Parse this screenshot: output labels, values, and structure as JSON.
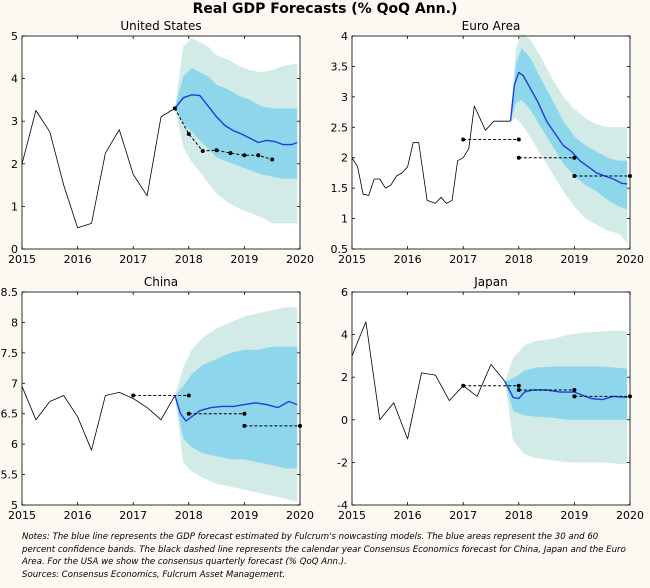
{
  "title": "Real GDP Forecasts (% QoQ Ann.)",
  "colors": {
    "background": "#fbf9f1",
    "band60": "#d2ebe6",
    "band30": "#8ed6ec",
    "forecast_line": "#1a3fe0",
    "history_line": "#000000",
    "consensus": "#000000"
  },
  "chart_data": [
    {
      "id": "us",
      "type": "line",
      "title": "United States",
      "xlim": [
        2015,
        2020
      ],
      "ylim": [
        0,
        5
      ],
      "xticks": [
        2015,
        2016,
        2017,
        2018,
        2019,
        2020
      ],
      "yticks": [
        0,
        1,
        2,
        3,
        4,
        5
      ],
      "grid": false,
      "history": {
        "x": [
          2015.0,
          2015.25,
          2015.5,
          2015.75,
          2016.0,
          2016.25,
          2016.5,
          2016.75,
          2017.0,
          2017.25,
          2017.5,
          2017.75
        ],
        "y": [
          2.0,
          3.25,
          2.75,
          1.5,
          0.5,
          0.6,
          2.25,
          2.8,
          1.75,
          1.25,
          3.1,
          3.3
        ]
      },
      "forecast": {
        "x": [
          2017.75,
          2017.9,
          2018.05,
          2018.2,
          2018.35,
          2018.5,
          2018.65,
          2018.8,
          2018.95,
          2019.1,
          2019.25,
          2019.4,
          2019.55,
          2019.7,
          2019.85,
          2019.95
        ],
        "y": [
          3.3,
          3.55,
          3.62,
          3.6,
          3.35,
          3.1,
          2.9,
          2.78,
          2.7,
          2.6,
          2.5,
          2.55,
          2.52,
          2.45,
          2.45,
          2.5
        ]
      },
      "band30": {
        "x": [
          2017.75,
          2017.9,
          2018.05,
          2018.2,
          2018.35,
          2018.5,
          2018.7,
          2018.9,
          2019.1,
          2019.3,
          2019.5,
          2019.7,
          2019.95
        ],
        "lower": [
          3.3,
          2.95,
          2.75,
          2.55,
          2.35,
          2.15,
          2.05,
          1.95,
          1.85,
          1.75,
          1.7,
          1.65,
          1.65
        ],
        "upper": [
          3.3,
          4.05,
          4.25,
          4.15,
          4.05,
          3.85,
          3.75,
          3.6,
          3.5,
          3.35,
          3.3,
          3.3,
          3.3
        ]
      },
      "band60": {
        "x": [
          2017.75,
          2017.9,
          2018.05,
          2018.2,
          2018.35,
          2018.5,
          2018.7,
          2018.9,
          2019.1,
          2019.3,
          2019.5,
          2019.7,
          2019.95
        ],
        "lower": [
          3.3,
          2.4,
          2.05,
          1.8,
          1.55,
          1.3,
          1.1,
          0.95,
          0.85,
          0.75,
          0.6,
          0.6,
          0.6
        ],
        "upper": [
          3.3,
          4.75,
          4.95,
          4.85,
          4.75,
          4.55,
          4.45,
          4.3,
          4.2,
          4.15,
          4.2,
          4.3,
          4.35
        ]
      },
      "consensus": [
        {
          "x": [
            2017.75,
            2018.0,
            2018.25,
            2018.5,
            2018.75,
            2019.0,
            2019.25,
            2019.5
          ],
          "y": [
            3.3,
            2.7,
            2.3,
            2.32,
            2.25,
            2.2,
            2.2,
            2.1
          ],
          "dots": [
            0,
            1,
            2,
            3,
            4,
            5,
            6,
            7
          ]
        }
      ]
    },
    {
      "id": "ea",
      "type": "line",
      "title": "Euro Area",
      "xlim": [
        2015,
        2020
      ],
      "ylim": [
        0.5,
        4
      ],
      "xticks": [
        2015,
        2016,
        2017,
        2018,
        2019,
        2020
      ],
      "yticks": [
        0.5,
        1,
        1.5,
        2,
        2.5,
        3,
        3.5,
        4
      ],
      "grid": false,
      "history": {
        "x": [
          2015.0,
          2015.1,
          2015.2,
          2015.3,
          2015.4,
          2015.5,
          2015.6,
          2015.7,
          2015.8,
          2015.9,
          2016.0,
          2016.1,
          2016.2,
          2016.35,
          2016.5,
          2016.6,
          2016.7,
          2016.8,
          2016.9,
          2017.0,
          2017.1,
          2017.2,
          2017.3,
          2017.4,
          2017.55,
          2017.7,
          2017.85
        ],
        "y": [
          2.0,
          1.85,
          1.4,
          1.38,
          1.65,
          1.65,
          1.5,
          1.55,
          1.7,
          1.75,
          1.85,
          2.25,
          2.25,
          1.3,
          1.25,
          1.35,
          1.25,
          1.3,
          1.95,
          2.0,
          2.15,
          2.85,
          2.65,
          2.45,
          2.6,
          2.6,
          2.6
        ]
      },
      "forecast": {
        "x": [
          2017.85,
          2017.92,
          2018.0,
          2018.08,
          2018.2,
          2018.35,
          2018.5,
          2018.65,
          2018.8,
          2018.95,
          2019.1,
          2019.25,
          2019.4,
          2019.55,
          2019.7,
          2019.85,
          2019.95
        ],
        "y": [
          2.6,
          3.2,
          3.4,
          3.35,
          3.15,
          2.9,
          2.6,
          2.4,
          2.2,
          2.1,
          1.95,
          1.85,
          1.75,
          1.7,
          1.65,
          1.58,
          1.57
        ]
      },
      "band30": {
        "x": [
          2017.85,
          2017.95,
          2018.05,
          2018.2,
          2018.4,
          2018.6,
          2018.8,
          2019.0,
          2019.2,
          2019.4,
          2019.6,
          2019.8,
          2019.95
        ],
        "lower": [
          2.6,
          2.9,
          2.95,
          2.8,
          2.5,
          2.2,
          1.9,
          1.7,
          1.55,
          1.45,
          1.3,
          1.2,
          1.15
        ],
        "upper": [
          2.6,
          3.55,
          3.8,
          3.65,
          3.3,
          2.95,
          2.6,
          2.35,
          2.2,
          2.1,
          2.0,
          1.95,
          1.95
        ]
      },
      "band60": {
        "x": [
          2017.85,
          2017.95,
          2018.05,
          2018.2,
          2018.4,
          2018.6,
          2018.8,
          2019.0,
          2019.2,
          2019.4,
          2019.6,
          2019.8,
          2019.95
        ],
        "lower": [
          2.6,
          2.65,
          2.55,
          2.35,
          2.05,
          1.75,
          1.45,
          1.2,
          1.0,
          0.9,
          0.8,
          0.75,
          0.6
        ],
        "upper": [
          2.6,
          3.8,
          4.05,
          3.95,
          3.65,
          3.3,
          3.0,
          2.8,
          2.65,
          2.55,
          2.5,
          2.5,
          2.5
        ]
      },
      "consensus": [
        {
          "x": [
            2017.0,
            2018.0
          ],
          "y": [
            2.3,
            2.3
          ],
          "dots": [
            0,
            1
          ]
        },
        {
          "x": [
            2018.0,
            2019.0
          ],
          "y": [
            2.0,
            2.0
          ],
          "dots": [
            0,
            1
          ]
        },
        {
          "x": [
            2019.0,
            2020.0
          ],
          "y": [
            1.7,
            1.7
          ],
          "dots": [
            0,
            1
          ]
        }
      ]
    },
    {
      "id": "cn",
      "type": "line",
      "title": "China",
      "xlim": [
        2015,
        2020
      ],
      "ylim": [
        5,
        8.5
      ],
      "xticks": [
        2015,
        2016,
        2017,
        2018,
        2019,
        2020
      ],
      "yticks": [
        5,
        5.5,
        6,
        6.5,
        7,
        7.5,
        8,
        8.5
      ],
      "grid": false,
      "history": {
        "x": [
          2015.0,
          2015.25,
          2015.5,
          2015.75,
          2016.0,
          2016.25,
          2016.5,
          2016.75,
          2017.0,
          2017.25,
          2017.5,
          2017.75
        ],
        "y": [
          6.95,
          6.4,
          6.7,
          6.8,
          6.45,
          5.9,
          6.8,
          6.85,
          6.75,
          6.6,
          6.4,
          6.8
        ]
      },
      "forecast": {
        "x": [
          2017.75,
          2017.85,
          2017.95,
          2018.05,
          2018.2,
          2018.4,
          2018.6,
          2018.8,
          2019.0,
          2019.2,
          2019.4,
          2019.6,
          2019.8,
          2019.95
        ],
        "y": [
          6.8,
          6.5,
          6.38,
          6.45,
          6.55,
          6.6,
          6.62,
          6.62,
          6.65,
          6.68,
          6.65,
          6.6,
          6.7,
          6.65
        ]
      },
      "band30": {
        "x": [
          2017.75,
          2017.9,
          2018.05,
          2018.25,
          2018.5,
          2018.75,
          2019.0,
          2019.25,
          2019.5,
          2019.75,
          2019.95
        ],
        "lower": [
          6.8,
          6.1,
          5.95,
          5.85,
          5.8,
          5.75,
          5.75,
          5.7,
          5.65,
          5.6,
          5.6
        ],
        "upper": [
          6.8,
          6.95,
          7.15,
          7.3,
          7.4,
          7.5,
          7.55,
          7.55,
          7.6,
          7.6,
          7.6
        ]
      },
      "band60": {
        "x": [
          2017.75,
          2017.9,
          2018.05,
          2018.25,
          2018.5,
          2018.75,
          2019.0,
          2019.25,
          2019.5,
          2019.75,
          2019.95
        ],
        "lower": [
          6.8,
          5.7,
          5.55,
          5.45,
          5.35,
          5.3,
          5.25,
          5.2,
          5.15,
          5.1,
          5.05
        ],
        "upper": [
          6.8,
          7.25,
          7.55,
          7.75,
          7.9,
          8.0,
          8.1,
          8.15,
          8.2,
          8.25,
          8.25
        ]
      },
      "consensus": [
        {
          "x": [
            2017.0,
            2018.0
          ],
          "y": [
            6.8,
            6.8
          ],
          "dots": [
            0,
            1
          ]
        },
        {
          "x": [
            2018.0,
            2019.0
          ],
          "y": [
            6.5,
            6.5
          ],
          "dots": [
            0,
            1
          ]
        },
        {
          "x": [
            2019.0,
            2020.0
          ],
          "y": [
            6.3,
            6.3
          ],
          "dots": [
            0,
            1
          ]
        }
      ]
    },
    {
      "id": "jp",
      "type": "line",
      "title": "Japan",
      "xlim": [
        2015,
        2020
      ],
      "ylim": [
        -4,
        6
      ],
      "xticks": [
        2015,
        2016,
        2017,
        2018,
        2019,
        2020
      ],
      "yticks": [
        -4,
        -2,
        0,
        2,
        4,
        6
      ],
      "grid": false,
      "history": {
        "x": [
          2015.0,
          2015.25,
          2015.5,
          2015.75,
          2016.0,
          2016.25,
          2016.5,
          2016.75,
          2017.0,
          2017.25,
          2017.5,
          2017.75
        ],
        "y": [
          3.0,
          4.6,
          0.0,
          0.8,
          -0.9,
          2.2,
          2.1,
          0.9,
          1.6,
          1.1,
          2.6,
          1.8
        ]
      },
      "forecast": {
        "x": [
          2017.75,
          2017.9,
          2018.0,
          2018.1,
          2018.25,
          2018.5,
          2018.75,
          2019.0,
          2019.15,
          2019.3,
          2019.5,
          2019.7,
          2019.95
        ],
        "y": [
          1.8,
          1.05,
          1.0,
          1.3,
          1.4,
          1.4,
          1.3,
          1.3,
          1.15,
          1.0,
          0.95,
          1.1,
          1.05
        ]
      },
      "band30": {
        "x": [
          2017.75,
          2017.9,
          2018.1,
          2018.3,
          2018.6,
          2018.9,
          2019.2,
          2019.5,
          2019.75,
          2019.95
        ],
        "lower": [
          1.8,
          0.4,
          0.2,
          0.15,
          0.1,
          0.0,
          0.0,
          0.0,
          0.0,
          0.0
        ],
        "upper": [
          1.8,
          1.95,
          2.3,
          2.45,
          2.5,
          2.5,
          2.5,
          2.5,
          2.45,
          2.4
        ]
      },
      "band60": {
        "x": [
          2017.75,
          2017.9,
          2018.1,
          2018.3,
          2018.6,
          2018.9,
          2019.2,
          2019.5,
          2019.75,
          2019.95
        ],
        "lower": [
          1.8,
          -1.0,
          -1.6,
          -1.8,
          -1.9,
          -2.0,
          -2.0,
          -2.0,
          -2.05,
          -2.1
        ],
        "upper": [
          1.8,
          2.9,
          3.5,
          3.7,
          3.8,
          4.0,
          4.1,
          4.15,
          4.2,
          4.15
        ]
      },
      "consensus": [
        {
          "x": [
            2017.0,
            2018.0
          ],
          "y": [
            1.6,
            1.6
          ],
          "dots": [
            0,
            1
          ]
        },
        {
          "x": [
            2018.0,
            2019.0
          ],
          "y": [
            1.4,
            1.4
          ],
          "dots": [
            0,
            1
          ]
        },
        {
          "x": [
            2019.0,
            2020.0
          ],
          "y": [
            1.1,
            1.1
          ],
          "dots": [
            0,
            1
          ]
        }
      ]
    }
  ],
  "notes": {
    "text": "Notes: The blue line represents the GDP forecast estimated by Fulcrum's nowcasting models. The blue areas represent the 30 and 60 percent confidence bands. The black dashed line represents the calendar year Consensus Economics forecast for China, Japan and the Euro Area. For the USA we show the consensus quarterly forecast (% QoQ Ann.).",
    "sources": "Sources: Consensus Economics, Fulcrum Asset Management."
  }
}
